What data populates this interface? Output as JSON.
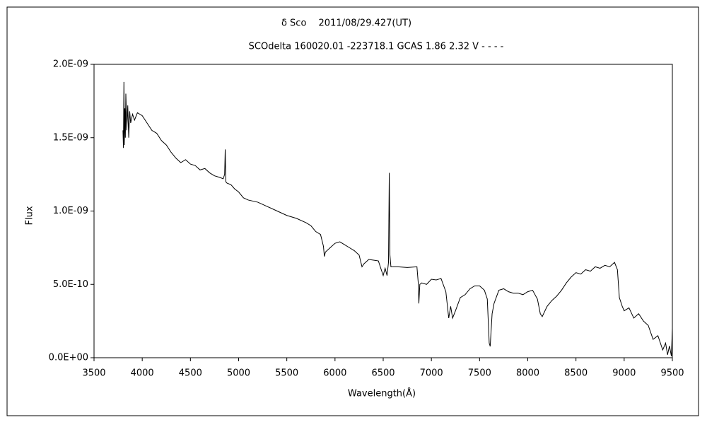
{
  "chart_data": {
    "type": "line",
    "title": "δ Sco　 2011/08/29.427(UT)",
    "subtitle": "SCOdelta 160020.01 -223718.1 GCAS 1.86 2.32 V - - - -",
    "x_label": "Wavelength(Å)",
    "y_label": "Flux",
    "xlim": [
      3500,
      9500
    ],
    "xticks": [
      3500,
      4000,
      4500,
      5000,
      5500,
      6000,
      6500,
      7000,
      7500,
      8000,
      8500,
      9000,
      9500
    ],
    "ylim": [
      0,
      2e-09
    ],
    "yticks": [
      {
        "value": 0,
        "label": "0.0E+00"
      },
      {
        "value": 5e-10,
        "label": "5.0E-10"
      },
      {
        "value": 1e-09,
        "label": "1.0E-09"
      },
      {
        "value": 1.5e-09,
        "label": "1.5E-09"
      },
      {
        "value": 2e-09,
        "label": "2.0E-09"
      }
    ],
    "grid": false,
    "series": [
      {
        "name": "SCOdelta",
        "color": "#000000",
        "x": [
          3800,
          3805,
          3810,
          3815,
          3820,
          3825,
          3830,
          3840,
          3850,
          3860,
          3870,
          3880,
          3900,
          3920,
          3950,
          4000,
          4050,
          4100,
          4150,
          4200,
          4250,
          4300,
          4350,
          4400,
          4450,
          4500,
          4550,
          4600,
          4650,
          4700,
          4750,
          4800,
          4840,
          4855,
          4861,
          4867,
          4880,
          4920,
          4960,
          5000,
          5050,
          5100,
          5200,
          5300,
          5400,
          5500,
          5600,
          5700,
          5750,
          5800,
          5850,
          5880,
          5890,
          5900,
          5950,
          6000,
          6050,
          6100,
          6150,
          6200,
          6250,
          6280,
          6300,
          6350,
          6400,
          6450,
          6480,
          6500,
          6520,
          6540,
          6555,
          6563,
          6570,
          6580,
          6650,
          6750,
          6850,
          6865,
          6870,
          6880,
          6900,
          6950,
          7000,
          7050,
          7100,
          7150,
          7180,
          7200,
          7220,
          7250,
          7300,
          7350,
          7400,
          7450,
          7500,
          7550,
          7580,
          7600,
          7610,
          7630,
          7650,
          7700,
          7750,
          7800,
          7850,
          7900,
          7950,
          8000,
          8050,
          8100,
          8130,
          8150,
          8200,
          8250,
          8300,
          8350,
          8400,
          8450,
          8500,
          8550,
          8600,
          8650,
          8700,
          8750,
          8800,
          8850,
          8900,
          8930,
          8950,
          8980,
          9000,
          9050,
          9100,
          9150,
          9200,
          9250,
          9300,
          9350,
          9400,
          9430,
          9450,
          9470,
          9490,
          9500
        ],
        "values": [
          1.55e-09,
          1.43e-09,
          1.88e-09,
          1.45e-09,
          1.7e-09,
          1.5e-09,
          1.8e-09,
          1.55e-09,
          1.72e-09,
          1.5e-09,
          1.68e-09,
          1.6e-09,
          1.66e-09,
          1.62e-09,
          1.67e-09,
          1.65e-09,
          1.6e-09,
          1.55e-09,
          1.53e-09,
          1.48e-09,
          1.45e-09,
          1.4e-09,
          1.36e-09,
          1.33e-09,
          1.35e-09,
          1.32e-09,
          1.31e-09,
          1.28e-09,
          1.29e-09,
          1.26e-09,
          1.24e-09,
          1.23e-09,
          1.22e-09,
          1.25e-09,
          1.42e-09,
          1.2e-09,
          1.19e-09,
          1.18e-09,
          1.15e-09,
          1.13e-09,
          1.09e-09,
          1.075e-09,
          1.06e-09,
          1.03e-09,
          1e-09,
          9.7e-10,
          9.5e-10,
          9.2e-10,
          9e-10,
          8.6e-10,
          8.4e-10,
          7.6e-10,
          6.9e-10,
          7.2e-10,
          7.5e-10,
          7.8e-10,
          7.9e-10,
          7.7e-10,
          7.5e-10,
          7.3e-10,
          7e-10,
          6.2e-10,
          6.4e-10,
          6.7e-10,
          6.65e-10,
          6.6e-10,
          6e-10,
          5.6e-10,
          6.1e-10,
          5.6e-10,
          6.5e-10,
          1.26e-09,
          7e-10,
          6.2e-10,
          6.2e-10,
          6.15e-10,
          6.2e-10,
          5e-10,
          3.7e-10,
          5e-10,
          5.1e-10,
          5e-10,
          5.35e-10,
          5.3e-10,
          5.4e-10,
          4.5e-10,
          2.7e-10,
          3.5e-10,
          2.7e-10,
          3.2e-10,
          4.1e-10,
          4.3e-10,
          4.7e-10,
          4.9e-10,
          4.9e-10,
          4.6e-10,
          4e-10,
          1e-10,
          7.7e-11,
          3e-10,
          3.7e-10,
          4.6e-10,
          4.7e-10,
          4.5e-10,
          4.4e-10,
          4.4e-10,
          4.3e-10,
          4.5e-10,
          4.6e-10,
          4e-10,
          3e-10,
          2.8e-10,
          3.5e-10,
          3.9e-10,
          4.2e-10,
          4.6e-10,
          5.1e-10,
          5.5e-10,
          5.8e-10,
          5.7e-10,
          6e-10,
          5.9e-10,
          6.2e-10,
          6.1e-10,
          6.3e-10,
          6.2e-10,
          6.5e-10,
          6e-10,
          4.1e-10,
          3.5e-10,
          3.2e-10,
          3.4e-10,
          2.7e-10,
          3e-10,
          2.5e-10,
          2.2e-10,
          1.25e-10,
          1.5e-10,
          5.3e-11,
          1e-10,
          2e-11,
          8e-11,
          1e-11,
          2e-10
        ]
      }
    ]
  }
}
